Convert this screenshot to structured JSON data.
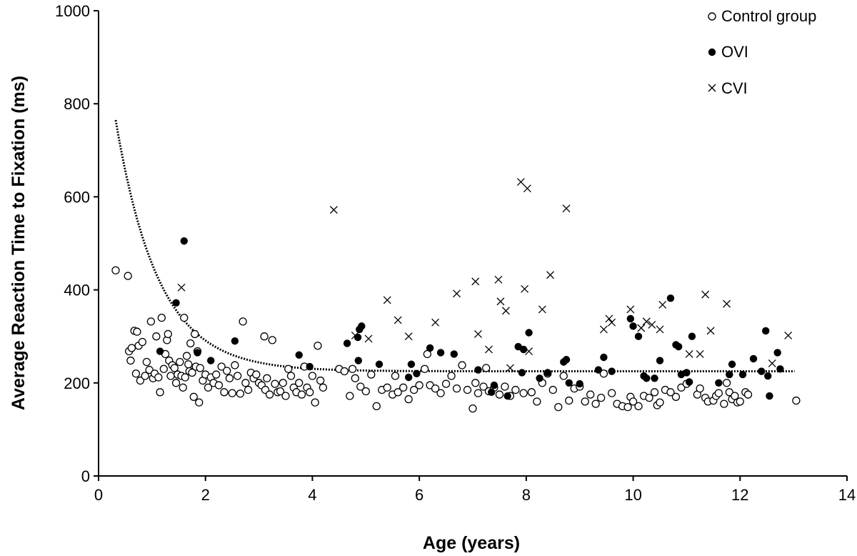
{
  "chart_data": {
    "type": "scatter",
    "title": "",
    "xlabel": "Age (years)",
    "ylabel": "Average Reaction Time to Fixation (ms)",
    "xlim": [
      0,
      14
    ],
    "ylim": [
      0,
      1000
    ],
    "xticks": [
      "0",
      "2",
      "4",
      "6",
      "8",
      "10",
      "12",
      "14"
    ],
    "yticks": [
      "0",
      "200",
      "400",
      "600",
      "800",
      "1000"
    ],
    "legend_position": "top-right",
    "series": [
      {
        "name": "Control group",
        "marker": "open-circle",
        "points": [
          [
            0.32,
            442
          ],
          [
            0.55,
            430
          ],
          [
            0.57,
            268
          ],
          [
            0.6,
            248
          ],
          [
            0.62,
            275
          ],
          [
            0.67,
            312
          ],
          [
            0.7,
            220
          ],
          [
            0.72,
            310
          ],
          [
            0.75,
            280
          ],
          [
            0.78,
            205
          ],
          [
            0.82,
            288
          ],
          [
            0.87,
            215
          ],
          [
            0.9,
            245
          ],
          [
            0.95,
            228
          ],
          [
            0.98,
            332
          ],
          [
            1.02,
            210
          ],
          [
            1.05,
            220
          ],
          [
            1.08,
            300
          ],
          [
            1.12,
            212
          ],
          [
            1.15,
            180
          ],
          [
            1.18,
            340
          ],
          [
            1.22,
            230
          ],
          [
            1.25,
            262
          ],
          [
            1.28,
            292
          ],
          [
            1.3,
            305
          ],
          [
            1.32,
            248
          ],
          [
            1.35,
            215
          ],
          [
            1.38,
            238
          ],
          [
            1.42,
            232
          ],
          [
            1.45,
            200
          ],
          [
            1.48,
            218
          ],
          [
            1.52,
            245
          ],
          [
            1.55,
            215
          ],
          [
            1.58,
            190
          ],
          [
            1.6,
            340
          ],
          [
            1.62,
            212
          ],
          [
            1.65,
            258
          ],
          [
            1.68,
            240
          ],
          [
            1.7,
            225
          ],
          [
            1.72,
            285
          ],
          [
            1.75,
            222
          ],
          [
            1.78,
            170
          ],
          [
            1.8,
            305
          ],
          [
            1.82,
            235
          ],
          [
            1.85,
            268
          ],
          [
            1.88,
            158
          ],
          [
            1.9,
            232
          ],
          [
            1.95,
            205
          ],
          [
            2.0,
            218
          ],
          [
            2.05,
            190
          ],
          [
            2.1,
            212
          ],
          [
            2.15,
            200
          ],
          [
            2.2,
            218
          ],
          [
            2.25,
            195
          ],
          [
            2.3,
            235
          ],
          [
            2.35,
            180
          ],
          [
            2.4,
            226
          ],
          [
            2.45,
            210
          ],
          [
            2.5,
            178
          ],
          [
            2.55,
            238
          ],
          [
            2.6,
            215
          ],
          [
            2.65,
            177
          ],
          [
            2.7,
            332
          ],
          [
            2.75,
            200
          ],
          [
            2.8,
            185
          ],
          [
            2.85,
            222
          ],
          [
            2.9,
            210
          ],
          [
            2.95,
            218
          ],
          [
            3.0,
            200
          ],
          [
            3.05,
            195
          ],
          [
            3.1,
            300
          ],
          [
            3.12,
            185
          ],
          [
            3.15,
            210
          ],
          [
            3.2,
            175
          ],
          [
            3.25,
            292
          ],
          [
            3.3,
            198
          ],
          [
            3.35,
            180
          ],
          [
            3.4,
            182
          ],
          [
            3.45,
            200
          ],
          [
            3.5,
            172
          ],
          [
            3.55,
            230
          ],
          [
            3.6,
            215
          ],
          [
            3.65,
            190
          ],
          [
            3.7,
            180
          ],
          [
            3.75,
            200
          ],
          [
            3.8,
            175
          ],
          [
            3.85,
            235
          ],
          [
            3.9,
            190
          ],
          [
            3.95,
            180
          ],
          [
            4.0,
            215
          ],
          [
            4.05,
            158
          ],
          [
            4.1,
            280
          ],
          [
            4.15,
            205
          ],
          [
            4.2,
            190
          ],
          [
            4.5,
            230
          ],
          [
            4.6,
            225
          ],
          [
            4.7,
            172
          ],
          [
            4.75,
            230
          ],
          [
            4.8,
            210
          ],
          [
            4.9,
            192
          ],
          [
            5.0,
            182
          ],
          [
            5.1,
            218
          ],
          [
            5.2,
            150
          ],
          [
            5.3,
            185
          ],
          [
            5.4,
            190
          ],
          [
            5.5,
            175
          ],
          [
            5.55,
            215
          ],
          [
            5.6,
            180
          ],
          [
            5.7,
            190
          ],
          [
            5.8,
            165
          ],
          [
            5.9,
            185
          ],
          [
            6.0,
            195
          ],
          [
            6.1,
            230
          ],
          [
            6.15,
            262
          ],
          [
            6.2,
            195
          ],
          [
            6.3,
            188
          ],
          [
            6.4,
            178
          ],
          [
            6.5,
            198
          ],
          [
            6.6,
            215
          ],
          [
            6.7,
            188
          ],
          [
            6.8,
            238
          ],
          [
            6.9,
            185
          ],
          [
            7.0,
            145
          ],
          [
            7.05,
            200
          ],
          [
            7.1,
            178
          ],
          [
            7.2,
            192
          ],
          [
            7.25,
            232
          ],
          [
            7.3,
            182
          ],
          [
            7.4,
            190
          ],
          [
            7.5,
            175
          ],
          [
            7.6,
            192
          ],
          [
            7.7,
            172
          ],
          [
            7.8,
            185
          ],
          [
            7.95,
            178
          ],
          [
            8.1,
            180
          ],
          [
            8.2,
            160
          ],
          [
            8.3,
            200
          ],
          [
            8.4,
            220
          ],
          [
            8.5,
            185
          ],
          [
            8.6,
            148
          ],
          [
            8.7,
            215
          ],
          [
            8.8,
            162
          ],
          [
            8.9,
            188
          ],
          [
            9.0,
            192
          ],
          [
            9.1,
            160
          ],
          [
            9.2,
            175
          ],
          [
            9.3,
            155
          ],
          [
            9.4,
            168
          ],
          [
            9.45,
            220
          ],
          [
            9.6,
            178
          ],
          [
            9.7,
            155
          ],
          [
            9.8,
            150
          ],
          [
            9.9,
            148
          ],
          [
            9.95,
            170
          ],
          [
            10.0,
            160
          ],
          [
            10.1,
            150
          ],
          [
            10.2,
            172
          ],
          [
            10.3,
            168
          ],
          [
            10.4,
            180
          ],
          [
            10.45,
            152
          ],
          [
            10.5,
            158
          ],
          [
            10.6,
            185
          ],
          [
            10.7,
            180
          ],
          [
            10.8,
            170
          ],
          [
            10.9,
            190
          ],
          [
            11.0,
            198
          ],
          [
            11.2,
            175
          ],
          [
            11.25,
            188
          ],
          [
            11.35,
            168
          ],
          [
            11.4,
            160
          ],
          [
            11.5,
            162
          ],
          [
            11.55,
            172
          ],
          [
            11.6,
            178
          ],
          [
            11.7,
            155
          ],
          [
            11.75,
            200
          ],
          [
            11.8,
            180
          ],
          [
            11.85,
            165
          ],
          [
            11.9,
            172
          ],
          [
            11.95,
            158
          ],
          [
            12.0,
            160
          ],
          [
            12.1,
            180
          ],
          [
            12.15,
            175
          ],
          [
            13.05,
            162
          ]
        ]
      },
      {
        "name": "OVI",
        "marker": "filled-circle",
        "points": [
          [
            1.6,
            505
          ],
          [
            1.45,
            372
          ],
          [
            1.15,
            268
          ],
          [
            1.85,
            265
          ],
          [
            2.1,
            248
          ],
          [
            2.55,
            290
          ],
          [
            3.75,
            260
          ],
          [
            3.95,
            235
          ],
          [
            4.65,
            285
          ],
          [
            4.85,
            298
          ],
          [
            4.88,
            315
          ],
          [
            4.92,
            322
          ],
          [
            4.86,
            248
          ],
          [
            5.25,
            240
          ],
          [
            5.8,
            212
          ],
          [
            5.85,
            240
          ],
          [
            5.95,
            220
          ],
          [
            6.2,
            275
          ],
          [
            6.4,
            265
          ],
          [
            6.65,
            262
          ],
          [
            7.1,
            228
          ],
          [
            7.35,
            180
          ],
          [
            7.4,
            195
          ],
          [
            7.65,
            172
          ],
          [
            7.85,
            278
          ],
          [
            7.95,
            272
          ],
          [
            7.92,
            222
          ],
          [
            8.05,
            308
          ],
          [
            8.25,
            210
          ],
          [
            8.4,
            222
          ],
          [
            8.7,
            245
          ],
          [
            8.75,
            250
          ],
          [
            8.8,
            200
          ],
          [
            9.0,
            198
          ],
          [
            9.35,
            228
          ],
          [
            9.45,
            255
          ],
          [
            9.6,
            225
          ],
          [
            9.95,
            338
          ],
          [
            10.0,
            322
          ],
          [
            10.1,
            300
          ],
          [
            10.2,
            215
          ],
          [
            10.25,
            210
          ],
          [
            10.4,
            210
          ],
          [
            10.5,
            248
          ],
          [
            10.7,
            382
          ],
          [
            10.8,
            282
          ],
          [
            10.85,
            278
          ],
          [
            10.9,
            218
          ],
          [
            11.0,
            222
          ],
          [
            11.05,
            202
          ],
          [
            11.1,
            300
          ],
          [
            11.6,
            200
          ],
          [
            11.8,
            218
          ],
          [
            11.85,
            240
          ],
          [
            12.05,
            218
          ],
          [
            12.25,
            252
          ],
          [
            12.4,
            225
          ],
          [
            12.48,
            312
          ],
          [
            12.52,
            215
          ],
          [
            12.55,
            172
          ],
          [
            12.7,
            265
          ],
          [
            12.75,
            230
          ]
        ]
      },
      {
        "name": "CVI",
        "marker": "cross",
        "points": [
          [
            1.55,
            405
          ],
          [
            4.4,
            572
          ],
          [
            4.8,
            302
          ],
          [
            5.05,
            295
          ],
          [
            5.4,
            378
          ],
          [
            5.6,
            335
          ],
          [
            5.8,
            300
          ],
          [
            6.3,
            330
          ],
          [
            6.7,
            392
          ],
          [
            7.05,
            418
          ],
          [
            7.1,
            305
          ],
          [
            7.3,
            272
          ],
          [
            7.48,
            422
          ],
          [
            7.52,
            375
          ],
          [
            7.62,
            355
          ],
          [
            7.7,
            232
          ],
          [
            7.9,
            632
          ],
          [
            7.97,
            402
          ],
          [
            8.02,
            618
          ],
          [
            8.05,
            268
          ],
          [
            8.3,
            358
          ],
          [
            8.45,
            432
          ],
          [
            8.75,
            575
          ],
          [
            9.45,
            315
          ],
          [
            9.55,
            338
          ],
          [
            9.6,
            330
          ],
          [
            9.95,
            358
          ],
          [
            10.15,
            318
          ],
          [
            10.25,
            332
          ],
          [
            10.35,
            325
          ],
          [
            10.5,
            315
          ],
          [
            10.55,
            368
          ],
          [
            11.05,
            262
          ],
          [
            11.25,
            262
          ],
          [
            11.35,
            390
          ],
          [
            11.45,
            312
          ],
          [
            11.75,
            370
          ],
          [
            12.6,
            242
          ],
          [
            12.9,
            302
          ]
        ]
      }
    ],
    "trendline": {
      "name": "fitted curve",
      "style": "dashed",
      "form": "225 + 540*exp(-1.25*(x-0.32))",
      "x_range": [
        0.32,
        13.05
      ]
    }
  }
}
